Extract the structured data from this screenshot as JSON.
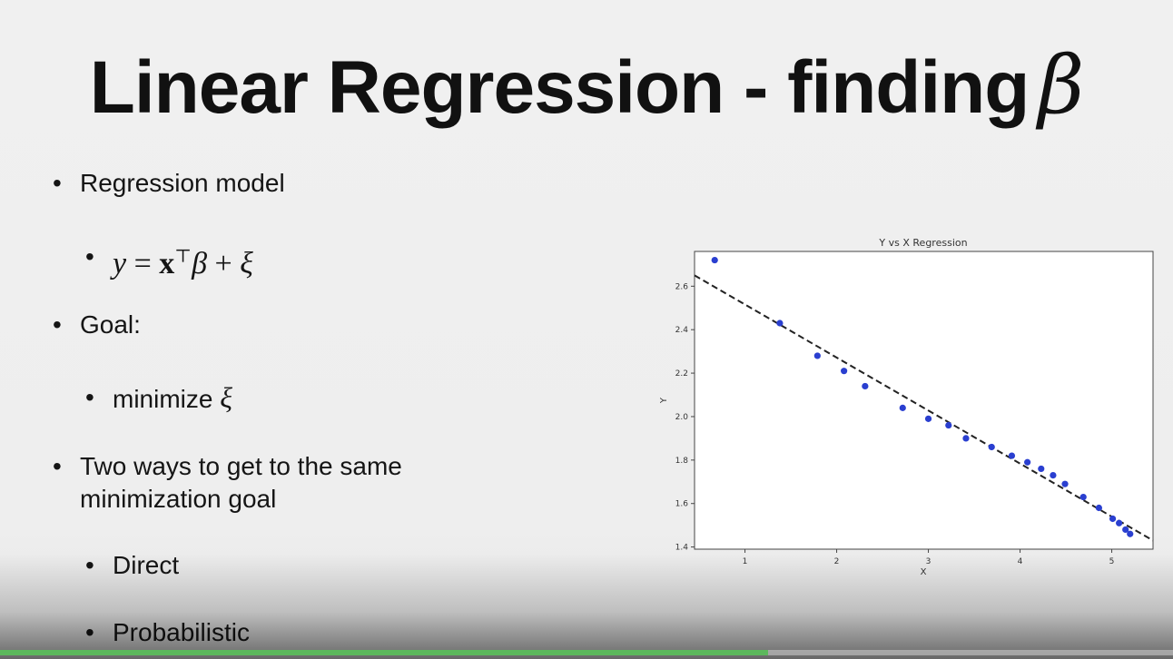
{
  "slide": {
    "title": "Linear Regression - finding",
    "title_symbol": "β"
  },
  "bullets": {
    "b1": "Regression model",
    "b1_sub_math": {
      "y": "y",
      "eq": " = ",
      "x": "x",
      "sup": "⊤",
      "beta": "β",
      "plus": " + ",
      "xi": "ξ"
    },
    "b2": "Goal:",
    "b2_sub_text": "minimize ",
    "b2_sub_xi": "ξ",
    "b3_line1": "Two ways to get to the same",
    "b3_line2": "minimization goal",
    "b3_sub1": "Direct",
    "b3_sub2": "Probabilistic",
    "dot": "•"
  },
  "chart_data": {
    "type": "scatter",
    "title": "Y vs X Regression",
    "xlabel": "X",
    "ylabel": "Y",
    "xlim": [
      0.45,
      5.45
    ],
    "ylim": [
      1.39,
      2.76
    ],
    "xticks": [
      1,
      2,
      3,
      4,
      5
    ],
    "yticks": [
      1.4,
      1.6,
      1.8,
      2.0,
      2.2,
      2.4,
      2.6
    ],
    "grid": false,
    "point_color": "#2a3fd0",
    "line_color": "#222222",
    "points": [
      {
        "x": 0.67,
        "y": 2.72
      },
      {
        "x": 1.38,
        "y": 2.43
      },
      {
        "x": 1.79,
        "y": 2.28
      },
      {
        "x": 2.08,
        "y": 2.21
      },
      {
        "x": 2.31,
        "y": 2.14
      },
      {
        "x": 2.72,
        "y": 2.04
      },
      {
        "x": 3.0,
        "y": 1.99
      },
      {
        "x": 3.22,
        "y": 1.96
      },
      {
        "x": 3.41,
        "y": 1.9
      },
      {
        "x": 3.69,
        "y": 1.86
      },
      {
        "x": 3.91,
        "y": 1.82
      },
      {
        "x": 4.08,
        "y": 1.79
      },
      {
        "x": 4.23,
        "y": 1.76
      },
      {
        "x": 4.36,
        "y": 1.73
      },
      {
        "x": 4.49,
        "y": 1.69
      },
      {
        "x": 4.69,
        "y": 1.63
      },
      {
        "x": 4.86,
        "y": 1.58
      },
      {
        "x": 5.01,
        "y": 1.53
      },
      {
        "x": 5.08,
        "y": 1.51
      },
      {
        "x": 5.15,
        "y": 1.48
      },
      {
        "x": 5.2,
        "y": 1.46
      }
    ],
    "fit_line": {
      "x": [
        0.45,
        5.45
      ],
      "y": [
        2.65,
        1.43
      ]
    }
  },
  "player": {
    "progress": 0.655,
    "progress_color": "#5cb85c"
  }
}
